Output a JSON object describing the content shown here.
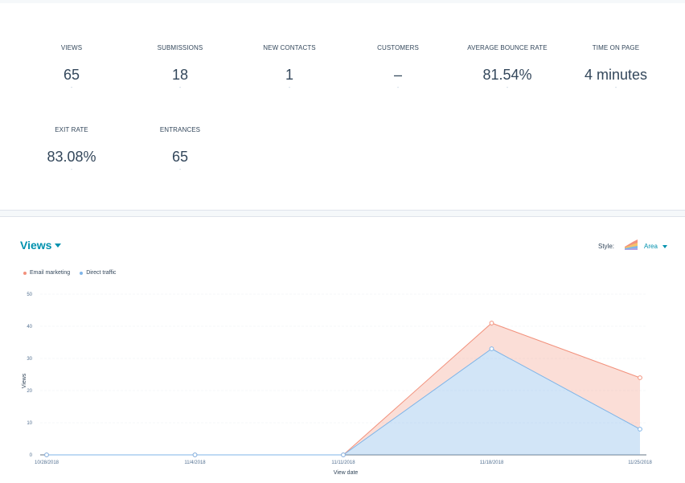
{
  "stats": [
    {
      "label": "VIEWS",
      "value": "65",
      "sub": "-"
    },
    {
      "label": "SUBMISSIONS",
      "value": "18",
      "sub": "-"
    },
    {
      "label": "NEW CONTACTS",
      "value": "1",
      "sub": "-"
    },
    {
      "label": "CUSTOMERS",
      "value": "–",
      "sub": "-"
    },
    {
      "label": "AVERAGE BOUNCE RATE",
      "value": "81.54%",
      "sub": "-"
    },
    {
      "label": "TIME ON PAGE",
      "value": "4 minutes",
      "sub": "-"
    },
    {
      "label": "EXIT RATE",
      "value": "83.08%",
      "sub": "-"
    },
    {
      "label": "ENTRANCES",
      "value": "65",
      "sub": "-"
    }
  ],
  "chart_header": {
    "title": "Views",
    "style_label": "Style:",
    "style_value": "Area",
    "style_icon": "area-chart-icon"
  },
  "colors": {
    "accent": "#0091ae",
    "email_marketing": "#f2917c",
    "direct_traffic": "#7fb5e8"
  },
  "chart_data": {
    "type": "area",
    "stacked": true,
    "x": [
      "10/28/2018",
      "11/4/2018",
      "11/11/2018",
      "11/18/2018",
      "11/25/2018"
    ],
    "xlabel": "View date",
    "ylabel": "Views",
    "ylim": [
      0,
      50
    ],
    "yticks": [
      0,
      10,
      20,
      30,
      40,
      50
    ],
    "grid": true,
    "legend_position": "top-left",
    "series": [
      {
        "name": "Email marketing",
        "values": [
          0,
          0,
          0,
          8,
          16
        ],
        "color": "#f2917c"
      },
      {
        "name": "Direct traffic",
        "values": [
          0,
          0,
          0,
          33,
          8
        ],
        "color": "#7fb5e8"
      }
    ]
  }
}
